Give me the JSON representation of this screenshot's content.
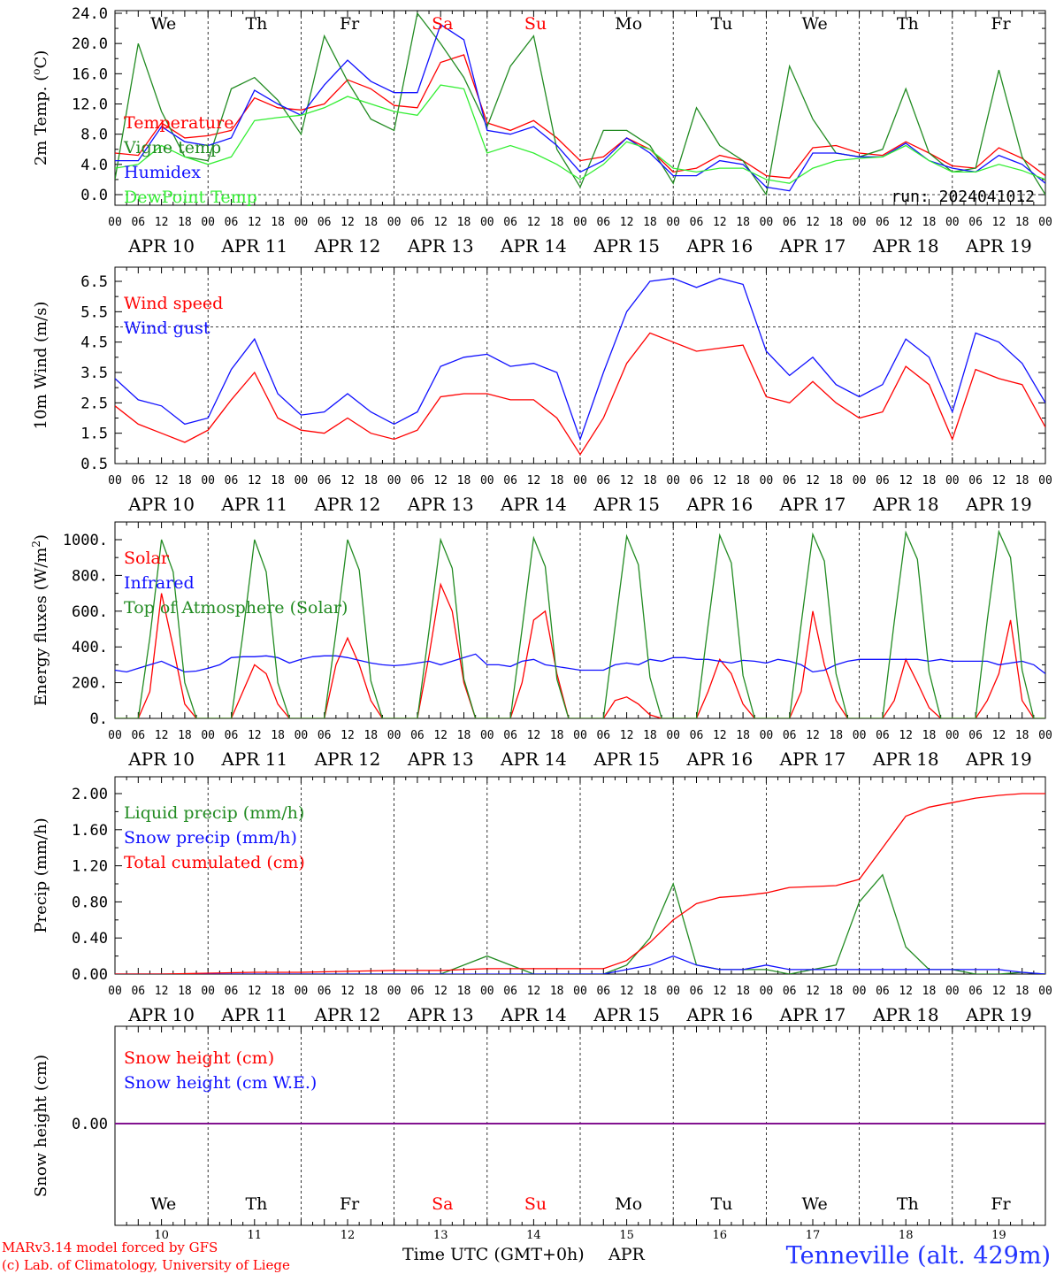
{
  "colors": {
    "temperature": "#ff0000",
    "vigne": "#228b22",
    "humidex": "#1010ff",
    "dewpoint": "#33ee33",
    "snow_cm": "#ff0000",
    "snow_we": "#1010ff",
    "text_black": "#000000",
    "weekend": "#ff0000",
    "station": "#2233ff"
  },
  "time_axis": {
    "hour_ticks": [
      "00",
      "06",
      "12",
      "18"
    ],
    "dates": [
      "APR 10",
      "APR 11",
      "APR 12",
      "APR 13",
      "APR 14",
      "APR 15",
      "APR 16",
      "APR 17",
      "APR 18",
      "APR 19"
    ],
    "weekdays": [
      "We",
      "Th",
      "Fr",
      "Sa",
      "Su",
      "Mo",
      "Tu",
      "We",
      "Th",
      "Fr"
    ],
    "weekend_days": [
      "Sa",
      "Su"
    ],
    "day_numbers": [
      "10",
      "11",
      "12",
      "13",
      "14",
      "15",
      "16",
      "17",
      "18",
      "19"
    ],
    "month": "APR",
    "xlabel": "Time UTC (GMT+0h)"
  },
  "footer": {
    "credit_line1": "MARv3.14 model forced by GFS",
    "credit_line2": "(c) Lab. of Climatology, University of Liege",
    "station": "Tenneville (alt. 429m)"
  },
  "chart_data": [
    {
      "type": "line",
      "ylabel": "2m Temp. (oC)",
      "ylim": [
        -1.5,
        24
      ],
      "yticks": [
        "24.0",
        "20.0",
        "16.0",
        "12.0",
        "8.0",
        "4.0",
        "0.0"
      ],
      "ytick_values": [
        24,
        20,
        16,
        12,
        8,
        4,
        0
      ],
      "reference_line": 0,
      "annotation": "run: 2024041012",
      "x": [
        0,
        6,
        12,
        18,
        24,
        30,
        36,
        42,
        48,
        54,
        60,
        66,
        72,
        78,
        84,
        90,
        96,
        102,
        108,
        114,
        120,
        126,
        132,
        138,
        144,
        150,
        156,
        162,
        168,
        174,
        180,
        186,
        192,
        198,
        204,
        210,
        216,
        222,
        228,
        234,
        240
      ],
      "series": [
        {
          "name": "Temperature",
          "color_key": "temperature",
          "values": [
            5.5,
            5.2,
            9.5,
            7.5,
            7.8,
            8.5,
            12.8,
            11.5,
            11.2,
            12.0,
            15.2,
            14.0,
            11.8,
            11.5,
            17.5,
            18.5,
            9.5,
            8.5,
            9.8,
            7.5,
            4.5,
            5.0,
            7.5,
            6.0,
            3.0,
            3.5,
            5.2,
            4.5,
            2.5,
            2.2,
            6.2,
            6.5,
            5.5,
            5.2,
            7.0,
            5.5,
            3.8,
            3.5,
            6.2,
            4.8,
            2.5
          ]
        },
        {
          "name": "Vigne temp",
          "color_key": "vigne",
          "values": [
            2.0,
            20.0,
            11.0,
            5.0,
            4.5,
            14.0,
            15.5,
            12.5,
            8.0,
            21.0,
            15.0,
            10.0,
            8.5,
            24.0,
            20.0,
            15.5,
            9.0,
            17.0,
            21.0,
            6.0,
            1.0,
            8.5,
            8.5,
            6.5,
            1.5,
            11.5,
            6.5,
            4.5,
            0.0,
            17.0,
            10.0,
            5.5,
            5.0,
            6.0,
            14.0,
            5.5,
            3.0,
            3.5,
            16.5,
            5.0,
            0.0
          ]
        },
        {
          "name": "Humidex",
          "color_key": "humidex",
          "values": [
            4.5,
            4.5,
            9.0,
            7.0,
            6.5,
            7.5,
            13.8,
            12.0,
            10.5,
            14.5,
            17.8,
            15.0,
            13.5,
            13.5,
            22.5,
            20.5,
            8.5,
            8.0,
            9.0,
            6.5,
            3.0,
            4.5,
            7.5,
            5.5,
            2.5,
            2.5,
            4.5,
            4.0,
            1.0,
            0.5,
            5.5,
            5.5,
            5.0,
            5.0,
            6.8,
            4.5,
            3.5,
            3.0,
            5.2,
            4.0,
            1.5
          ]
        },
        {
          "name": "DewPoint Temp",
          "color_key": "dewpoint",
          "values": [
            3.5,
            4.0,
            6.5,
            5.0,
            4.0,
            5.0,
            9.8,
            10.2,
            10.5,
            11.5,
            13.0,
            12.0,
            11.0,
            10.5,
            14.5,
            14.0,
            5.5,
            6.5,
            5.5,
            4.0,
            2.0,
            4.0,
            7.0,
            6.0,
            3.5,
            3.0,
            3.5,
            3.5,
            2.0,
            1.5,
            3.5,
            4.5,
            4.8,
            5.0,
            6.5,
            4.5,
            3.0,
            3.0,
            4.0,
            3.2,
            2.0
          ]
        }
      ]
    },
    {
      "type": "line",
      "ylabel": "10m Wind (m/s)",
      "ylim": [
        0.5,
        7.0
      ],
      "yticks": [
        "6.5",
        "5.5",
        "4.5",
        "3.5",
        "2.5",
        "1.5",
        "0.5"
      ],
      "ytick_values": [
        6.5,
        5.5,
        4.5,
        3.5,
        2.5,
        1.5,
        0.5
      ],
      "reference_line": 5.0,
      "x": [
        0,
        6,
        12,
        18,
        24,
        30,
        36,
        42,
        48,
        54,
        60,
        66,
        72,
        78,
        84,
        90,
        96,
        102,
        108,
        114,
        120,
        126,
        132,
        138,
        144,
        150,
        156,
        162,
        168,
        174,
        180,
        186,
        192,
        198,
        204,
        210,
        216,
        222,
        228,
        234,
        240
      ],
      "series": [
        {
          "name": "Wind speed",
          "color_key": "temperature",
          "values": [
            2.4,
            1.8,
            1.5,
            1.2,
            1.6,
            2.6,
            3.5,
            2.0,
            1.6,
            1.5,
            2.0,
            1.5,
            1.3,
            1.6,
            2.7,
            2.8,
            2.8,
            2.6,
            2.6,
            2.0,
            0.8,
            2.0,
            3.8,
            4.8,
            4.5,
            4.2,
            4.3,
            4.4,
            2.7,
            2.5,
            3.2,
            2.5,
            2.0,
            2.2,
            3.7,
            3.1,
            1.3,
            3.6,
            3.3,
            3.1,
            1.7
          ]
        },
        {
          "name": "Wind gust",
          "color_key": "humidex",
          "values": [
            3.3,
            2.6,
            2.4,
            1.8,
            2.0,
            3.6,
            4.6,
            2.8,
            2.1,
            2.2,
            2.8,
            2.2,
            1.8,
            2.2,
            3.7,
            4.0,
            4.1,
            3.7,
            3.8,
            3.5,
            1.3,
            3.5,
            5.5,
            6.5,
            6.6,
            6.3,
            6.6,
            6.4,
            4.2,
            3.4,
            4.0,
            3.1,
            2.7,
            3.1,
            4.6,
            4.0,
            2.2,
            4.8,
            4.5,
            3.8,
            2.5
          ]
        }
      ]
    },
    {
      "type": "line",
      "ylabel": "Energy fluxes (W/m2)",
      "ylim": [
        0,
        1100
      ],
      "yticks": [
        "1000.",
        "800.",
        "600.",
        "400.",
        "200.",
        "0."
      ],
      "ytick_values": [
        1000,
        800,
        600,
        400,
        200,
        0
      ],
      "x": [
        0,
        3,
        6,
        9,
        12,
        15,
        18,
        21,
        24,
        27,
        30,
        33,
        36,
        39,
        42,
        45,
        48,
        51,
        54,
        57,
        60,
        63,
        66,
        69,
        72,
        75,
        78,
        81,
        84,
        87,
        90,
        93,
        96,
        99,
        102,
        105,
        108,
        111,
        114,
        117,
        120,
        123,
        126,
        129,
        132,
        135,
        138,
        141,
        144,
        147,
        150,
        153,
        156,
        159,
        162,
        165,
        168,
        171,
        174,
        177,
        180,
        183,
        186,
        189,
        192,
        195,
        198,
        201,
        204,
        207,
        210,
        213,
        216,
        219,
        222,
        225,
        228,
        231,
        234,
        237,
        240
      ],
      "series": [
        {
          "name": "Solar",
          "color_key": "temperature",
          "values": [
            0,
            0,
            0,
            150,
            700,
            400,
            80,
            0,
            0,
            0,
            0,
            150,
            300,
            250,
            80,
            0,
            0,
            0,
            0,
            300,
            450,
            300,
            100,
            0,
            0,
            0,
            0,
            350,
            750,
            600,
            200,
            0,
            0,
            0,
            0,
            200,
            550,
            600,
            250,
            0,
            0,
            0,
            0,
            100,
            120,
            80,
            20,
            0,
            0,
            0,
            0,
            150,
            330,
            250,
            80,
            0,
            0,
            0,
            0,
            150,
            600,
            300,
            100,
            0,
            0,
            0,
            0,
            100,
            330,
            200,
            60,
            0,
            0,
            0,
            0,
            100,
            250,
            550,
            100,
            0,
            0
          ]
        },
        {
          "name": "Infrared",
          "color_key": "humidex",
          "values": [
            270,
            260,
            280,
            300,
            320,
            290,
            260,
            265,
            280,
            300,
            340,
            345,
            345,
            350,
            340,
            310,
            330,
            345,
            350,
            350,
            340,
            325,
            310,
            300,
            295,
            300,
            310,
            320,
            300,
            320,
            340,
            360,
            300,
            300,
            290,
            320,
            330,
            300,
            290,
            280,
            270,
            270,
            270,
            300,
            310,
            300,
            330,
            320,
            340,
            340,
            330,
            330,
            320,
            310,
            325,
            320,
            310,
            330,
            320,
            300,
            260,
            270,
            300,
            320,
            330,
            330,
            330,
            330,
            330,
            330,
            320,
            330,
            320,
            320,
            320,
            320,
            300,
            310,
            320,
            300,
            250
          ]
        },
        {
          "name": "Top of Atmosphere (Solar)",
          "color_key": "vigne",
          "values": [
            0,
            0,
            0,
            450,
            1000,
            820,
            200,
            0,
            0,
            0,
            0,
            470,
            1000,
            820,
            200,
            0,
            0,
            0,
            0,
            480,
            1000,
            830,
            210,
            0,
            0,
            0,
            0,
            490,
            1000,
            840,
            220,
            0,
            0,
            0,
            0,
            500,
            1010,
            850,
            220,
            0,
            0,
            0,
            0,
            510,
            1020,
            860,
            230,
            0,
            0,
            0,
            0,
            520,
            1025,
            870,
            240,
            0,
            0,
            0,
            0,
            530,
            1030,
            880,
            250,
            0,
            0,
            0,
            0,
            540,
            1040,
            890,
            260,
            0,
            0,
            0,
            0,
            550,
            1045,
            900,
            270,
            0,
            0
          ]
        }
      ]
    },
    {
      "type": "line",
      "ylabel": "Precip (mm/h)",
      "ylim": [
        0,
        2.05
      ],
      "yticks": [
        "2.00",
        "1.60",
        "1.20",
        "0.80",
        "0.40",
        "0.00"
      ],
      "ytick_values": [
        2.0,
        1.6,
        1.2,
        0.8,
        0.4,
        0.0
      ],
      "x": [
        0,
        12,
        24,
        36,
        48,
        60,
        72,
        84,
        96,
        108,
        120,
        126,
        132,
        138,
        144,
        150,
        156,
        162,
        168,
        174,
        180,
        186,
        192,
        198,
        204,
        210,
        216,
        222,
        228,
        234,
        240
      ],
      "series": [
        {
          "name": "Liquid precip (mm/h)",
          "color_key": "vigne",
          "values": [
            0,
            0,
            0,
            0,
            0,
            0,
            0,
            0,
            0.2,
            0,
            0,
            0,
            0.1,
            0.4,
            1.0,
            0.1,
            0.05,
            0.05,
            0.05,
            0,
            0.05,
            0.1,
            0.8,
            1.1,
            0.3,
            0.05,
            0.05,
            0,
            0,
            0.02,
            0
          ]
        },
        {
          "name": "Snow precip (mm/h)",
          "color_key": "humidex",
          "values": [
            0,
            0,
            0,
            0,
            0,
            0,
            0,
            0,
            0,
            0,
            0,
            0,
            0.05,
            0.1,
            0.2,
            0.1,
            0.05,
            0.05,
            0.1,
            0.05,
            0.05,
            0.05,
            0.05,
            0.05,
            0.05,
            0.05,
            0.05,
            0.05,
            0.05,
            0.02,
            0
          ]
        },
        {
          "name": "Total cumulated (cm)",
          "color_key": "temperature",
          "values": [
            0,
            0,
            0.01,
            0.02,
            0.02,
            0.03,
            0.04,
            0.04,
            0.06,
            0.06,
            0.06,
            0.06,
            0.15,
            0.35,
            0.6,
            0.78,
            0.85,
            0.87,
            0.9,
            0.96,
            0.97,
            0.98,
            1.05,
            1.4,
            1.75,
            1.85,
            1.9,
            1.95,
            1.98,
            2.0,
            2.0
          ]
        }
      ]
    },
    {
      "type": "line",
      "ylabel": "Snow height (cm)",
      "ylim": [
        -2,
        2
      ],
      "yticks": [
        "0.00"
      ],
      "ytick_values": [
        0
      ],
      "x": [
        0,
        240
      ],
      "series": [
        {
          "name": "Snow height (cm)",
          "color_key": "snow_cm",
          "values": [
            0,
            0
          ]
        },
        {
          "name": "Snow height (cm W.E.)",
          "color_key": "snow_we",
          "values": [
            0,
            0
          ]
        }
      ]
    }
  ]
}
